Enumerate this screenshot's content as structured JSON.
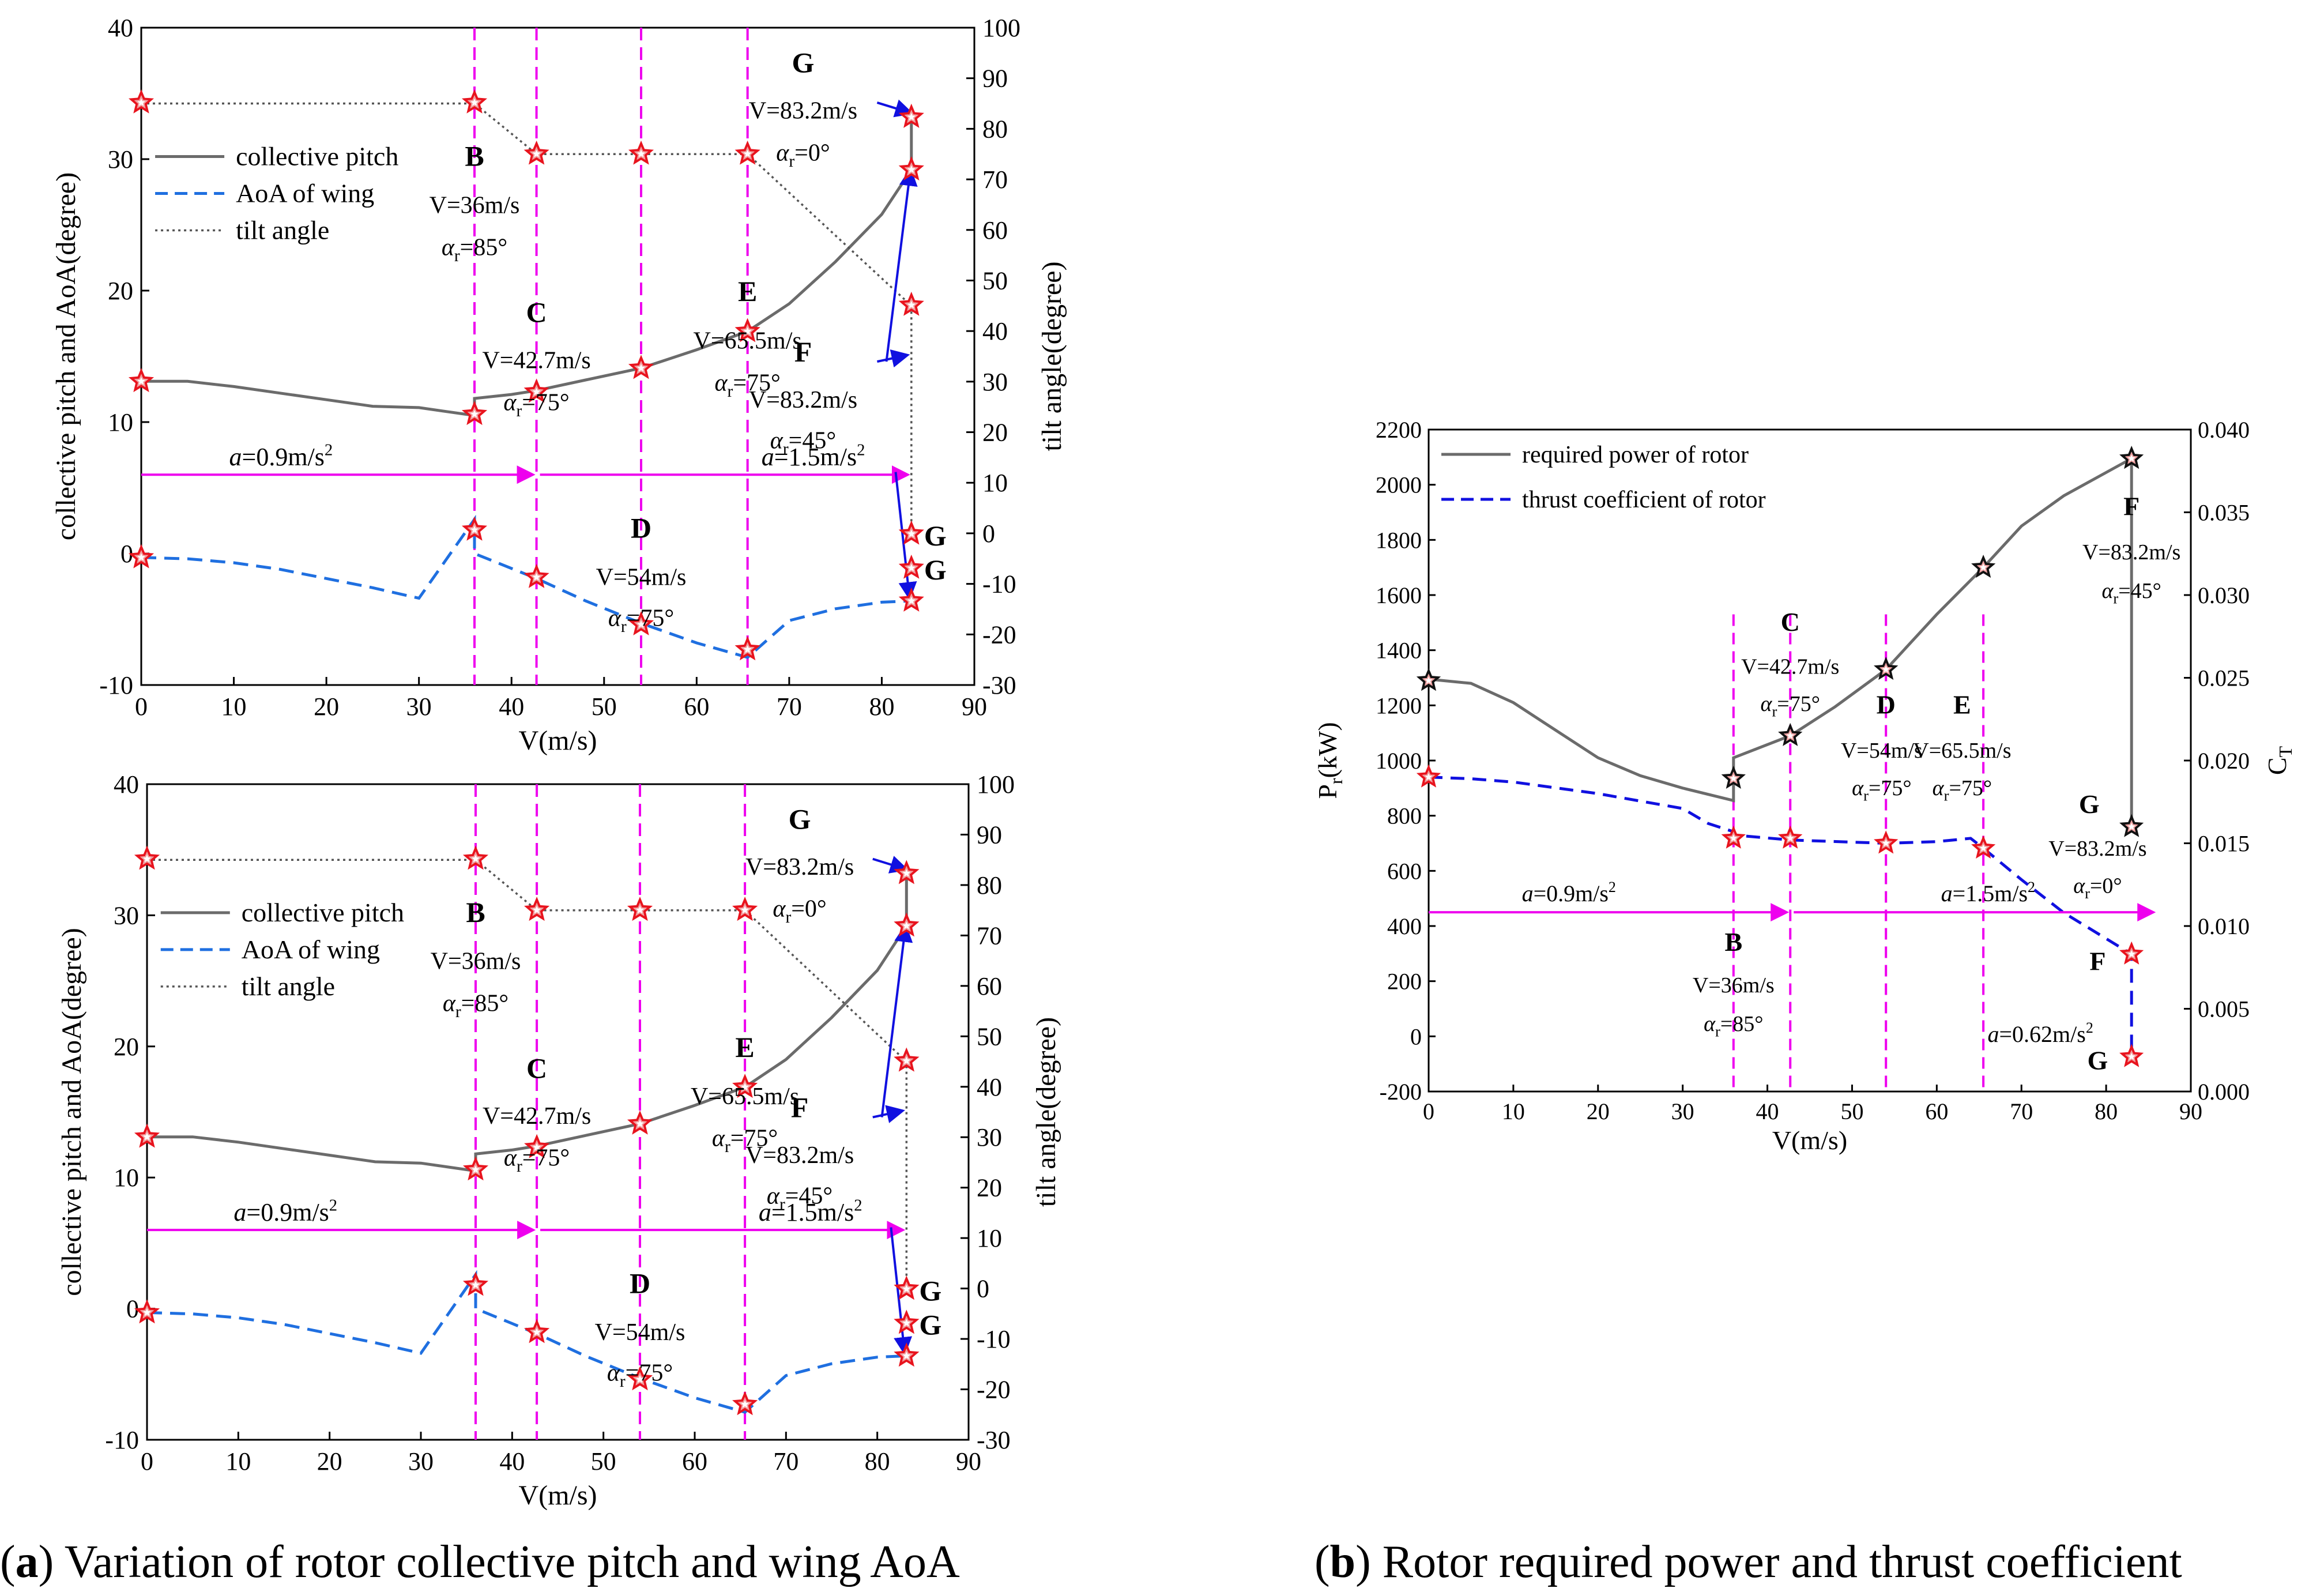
{
  "captions": [
    {
      "letter": "a",
      "text": " Variation of rotor collective pitch and wing AoA"
    },
    {
      "letter": "b",
      "text": " Rotor required power and thrust coefficient"
    }
  ],
  "colors": {
    "pitch": "#6b6b6b",
    "aoa": "#1f6fe0",
    "tilt": "#555555",
    "vline": "#ee00ee",
    "accel": "#ee00ee",
    "arrow": "#1010e0",
    "star_stroke": "#e8141e",
    "power": "#6b6b6b",
    "ct": "#1010e0"
  },
  "chart_data": [
    {
      "type": "line",
      "id": "a1",
      "xlabel": "V(m/s)",
      "ylabel": "collective pitch and AoA(degree)",
      "y2label": "tilt angle(degree)",
      "xlim": [
        0,
        90
      ],
      "ylim": [
        -10,
        40
      ],
      "y2lim": [
        -30,
        100
      ],
      "xticks": [
        0,
        10,
        20,
        30,
        40,
        50,
        60,
        70,
        80,
        90
      ],
      "yticks": [
        -10,
        0,
        10,
        20,
        30,
        40
      ],
      "y2ticks": [
        -30,
        -20,
        -10,
        0,
        10,
        20,
        30,
        40,
        50,
        60,
        70,
        80,
        90,
        100
      ],
      "legend": [
        "collective pitch",
        "AoA of wing",
        "tilt angle"
      ],
      "legend_position": "upper-left",
      "series": [
        {
          "name": "collective pitch",
          "axis": "left",
          "style": "solid",
          "x": [
            0,
            5,
            10,
            15,
            20,
            25,
            30,
            33,
            36,
            36,
            40,
            42.7,
            48,
            54,
            60,
            65.5,
            70,
            75,
            80,
            83.2,
            83.2
          ],
          "y": [
            13.1,
            13.1,
            12.7,
            12.2,
            11.7,
            11.2,
            11.1,
            10.8,
            10.5,
            11.8,
            12.1,
            12.4,
            13.2,
            14.1,
            15.5,
            16.9,
            19,
            22.2,
            25.8,
            29.2,
            33.3
          ]
        },
        {
          "name": "AoA of wing",
          "axis": "left",
          "style": "dashed",
          "x": [
            0,
            5,
            10,
            15,
            20,
            25,
            30,
            36,
            36,
            42.7,
            48,
            54,
            60,
            65.5,
            70,
            75,
            80,
            83.2
          ],
          "y": [
            -0.3,
            -0.4,
            -0.7,
            -1.2,
            -1.9,
            -2.6,
            -3.4,
            2.6,
            0,
            -1.9,
            -3.6,
            -5.3,
            -6.8,
            -7.9,
            -5.1,
            -4.2,
            -3.7,
            -3.6
          ]
        },
        {
          "name": "tilt angle",
          "axis": "right",
          "style": "dotted",
          "x": [
            0,
            36,
            42.7,
            54,
            65.5,
            83.2,
            83.2
          ],
          "y": [
            85,
            85,
            75,
            75,
            75,
            45,
            0
          ]
        }
      ],
      "markers_left": [
        {
          "x": 0,
          "y": 34.3
        },
        {
          "x": 36,
          "y": 34.3
        },
        {
          "x": 42.7,
          "y": 30.4
        },
        {
          "x": 54,
          "y": 30.4
        },
        {
          "x": 65.5,
          "y": 30.4
        },
        {
          "x": 83.2,
          "y": 33.2
        },
        {
          "x": 83.2,
          "y": 29.2
        },
        {
          "x": 83.2,
          "y": 18.9
        },
        {
          "x": 0,
          "y": 13.1
        },
        {
          "x": 36,
          "y": 10.6
        },
        {
          "x": 42.7,
          "y": 12.3
        },
        {
          "x": 54,
          "y": 14.1
        },
        {
          "x": 65.5,
          "y": 16.9
        },
        {
          "x": 83.2,
          "y": 1.5
        },
        {
          "x": 83.2,
          "y": -1.1
        },
        {
          "x": 0,
          "y": -0.3
        },
        {
          "x": 36,
          "y": 1.8
        },
        {
          "x": 42.7,
          "y": -1.8
        },
        {
          "x": 54,
          "y": -5.4
        },
        {
          "x": 65.5,
          "y": -7.3
        },
        {
          "x": 83.2,
          "y": -3.6
        }
      ],
      "vlines": [
        36,
        42.7,
        54,
        65.5
      ],
      "accel_arrows": [
        {
          "label": "a=0.9m/s",
          "sup": "2",
          "x1": 0,
          "x2": 42.7,
          "lx": 9.5,
          "ly": 6.7
        },
        {
          "label": "a=1.5m/s",
          "sup": "2",
          "x1": 42.7,
          "x2": 83.2,
          "lx": 67,
          "ly": 6.7
        }
      ],
      "accel_y": 6,
      "blue_arrows": [
        {
          "x1": 79.5,
          "y1": 34.3,
          "x2": 83.2,
          "y2": 33.5
        },
        {
          "x1": 79.5,
          "y1": 14.6,
          "x2": 82.8,
          "y2": 15.1
        },
        {
          "x1": 80.5,
          "y1": 14.6,
          "x2": 83.1,
          "y2": 29.2
        },
        {
          "x1": 81.5,
          "y1": 6.2,
          "x2": 83,
          "y2": -3.4
        }
      ],
      "point_labels": [
        {
          "letter": "B",
          "x": 36,
          "y": 29.5
        },
        {
          "letter": "C",
          "x": 42.7,
          "y": 17.6
        },
        {
          "letter": "D",
          "x": 54,
          "y": 1.2
        },
        {
          "letter": "E",
          "x": 65.5,
          "y": 19.2
        },
        {
          "letter": "F",
          "x": 71.5,
          "y": 14.6
        },
        {
          "letter": "G",
          "x": 71.5,
          "y": 36.6
        }
      ],
      "point_texts": [
        {
          "v": "V=36m/s",
          "a": "85°",
          "x": 36,
          "y1": 25.9,
          "y2": 22.7
        },
        {
          "v": "V=42.7m/s",
          "a": "75°",
          "x": 42.7,
          "y1": 14.1,
          "y2": 10.9
        },
        {
          "v": "V=54m/s",
          "a": "75°",
          "x": 54,
          "y1": -2.4,
          "y2": -5.5
        },
        {
          "v": "V=65.5m/s",
          "a": "75°",
          "x": 65.5,
          "y1": 15.6,
          "y2": 12.4
        },
        {
          "v": "V=83.2m/s",
          "a": "45°",
          "x": 71.5,
          "y1": 11.1,
          "y2": 8
        },
        {
          "v": "V=83.2m/s",
          "a": "0°",
          "x": 71.5,
          "y1": 33.1,
          "y2": 29.9
        }
      ],
      "side_labels": [
        {
          "letter": "G",
          "x": 83.2,
          "y": 1.5
        },
        {
          "letter": "G",
          "x": 83.2,
          "y": -1.1
        }
      ]
    },
    {
      "type": "line",
      "id": "a2",
      "xlabel": "V(m/s)",
      "ylabel": "collective pitch and AoA(degree)",
      "y2label": "tilt angle(degree)",
      "xlim": [
        0,
        90
      ],
      "ylim": [
        -10,
        40
      ],
      "y2lim": [
        -30,
        100
      ],
      "xticks": [
        0,
        10,
        20,
        30,
        40,
        50,
        60,
        70,
        80,
        90
      ],
      "yticks": [
        -10,
        0,
        10,
        20,
        30,
        40
      ],
      "y2ticks": [
        -30,
        -20,
        -10,
        0,
        10,
        20,
        30,
        40,
        50,
        60,
        70,
        80,
        90,
        100
      ],
      "legend": [
        "collective pitch",
        "AoA of wing",
        "tilt angle"
      ],
      "legend_position": "upper-left",
      "series": [
        {
          "name": "collective pitch",
          "axis": "left",
          "style": "solid",
          "x": [
            0,
            5,
            10,
            15,
            20,
            25,
            30,
            33,
            36,
            36,
            40,
            42.7,
            48,
            54,
            60,
            65.5,
            70,
            75,
            80,
            83.2,
            83.2
          ],
          "y": [
            13.1,
            13.1,
            12.7,
            12.2,
            11.7,
            11.2,
            11.1,
            10.8,
            10.5,
            11.8,
            12.1,
            12.4,
            13.2,
            14.1,
            15.5,
            16.9,
            19,
            22.2,
            25.8,
            29.2,
            33.3
          ]
        },
        {
          "name": "AoA of wing",
          "axis": "left",
          "style": "dashed",
          "x": [
            0,
            5,
            10,
            15,
            20,
            25,
            30,
            36,
            36,
            42.7,
            48,
            54,
            60,
            65.5,
            70,
            75,
            80,
            83.2
          ],
          "y": [
            -0.3,
            -0.4,
            -0.7,
            -1.2,
            -1.9,
            -2.6,
            -3.4,
            2.6,
            0,
            -1.9,
            -3.6,
            -5.3,
            -6.8,
            -7.9,
            -5.1,
            -4.2,
            -3.7,
            -3.6
          ]
        },
        {
          "name": "tilt angle",
          "axis": "right",
          "style": "dotted",
          "x": [
            0,
            36,
            42.7,
            54,
            65.5,
            83.2,
            83.2
          ],
          "y": [
            85,
            85,
            75,
            75,
            75,
            45,
            0
          ]
        }
      ],
      "markers_left": [
        {
          "x": 0,
          "y": 34.3
        },
        {
          "x": 36,
          "y": 34.3
        },
        {
          "x": 42.7,
          "y": 30.4
        },
        {
          "x": 54,
          "y": 30.4
        },
        {
          "x": 65.5,
          "y": 30.4
        },
        {
          "x": 83.2,
          "y": 33.2
        },
        {
          "x": 83.2,
          "y": 29.2
        },
        {
          "x": 83.2,
          "y": 18.9
        },
        {
          "x": 0,
          "y": 13.1
        },
        {
          "x": 36,
          "y": 10.6
        },
        {
          "x": 42.7,
          "y": 12.3
        },
        {
          "x": 54,
          "y": 14.1
        },
        {
          "x": 65.5,
          "y": 16.9
        },
        {
          "x": 83.2,
          "y": 1.5
        },
        {
          "x": 83.2,
          "y": -1.1
        },
        {
          "x": 0,
          "y": -0.3
        },
        {
          "x": 36,
          "y": 1.8
        },
        {
          "x": 42.7,
          "y": -1.8
        },
        {
          "x": 54,
          "y": -5.4
        },
        {
          "x": 65.5,
          "y": -7.3
        },
        {
          "x": 83.2,
          "y": -3.6
        }
      ],
      "vlines": [
        36,
        42.7,
        54,
        65.5
      ],
      "accel_arrows": [
        {
          "label": "a=0.9m/s",
          "sup": "2",
          "x1": 0,
          "x2": 42.7,
          "lx": 9.5,
          "ly": 6.7
        },
        {
          "label": "a=1.5m/s",
          "sup": "2",
          "x1": 42.7,
          "x2": 83.2,
          "lx": 67,
          "ly": 6.7
        }
      ],
      "accel_y": 6,
      "blue_arrows": [
        {
          "x1": 79.5,
          "y1": 34.3,
          "x2": 83.2,
          "y2": 33.5
        },
        {
          "x1": 79.5,
          "y1": 14.6,
          "x2": 82.8,
          "y2": 15.1
        },
        {
          "x1": 80.5,
          "y1": 14.6,
          "x2": 83.1,
          "y2": 29.2
        },
        {
          "x1": 81.5,
          "y1": 6.2,
          "x2": 83,
          "y2": -3.4
        }
      ],
      "point_labels": [
        {
          "letter": "B",
          "x": 36,
          "y": 29.5
        },
        {
          "letter": "C",
          "x": 42.7,
          "y": 17.6
        },
        {
          "letter": "D",
          "x": 54,
          "y": 1.2
        },
        {
          "letter": "E",
          "x": 65.5,
          "y": 19.2
        },
        {
          "letter": "F",
          "x": 71.5,
          "y": 14.6
        },
        {
          "letter": "G",
          "x": 71.5,
          "y": 36.6
        }
      ],
      "point_texts": [
        {
          "v": "V=36m/s",
          "a": "85°",
          "x": 36,
          "y1": 25.9,
          "y2": 22.7
        },
        {
          "v": "V=42.7m/s",
          "a": "75°",
          "x": 42.7,
          "y1": 14.1,
          "y2": 10.9
        },
        {
          "v": "V=54m/s",
          "a": "75°",
          "x": 54,
          "y1": -2.4,
          "y2": -5.5
        },
        {
          "v": "V=65.5m/s",
          "a": "75°",
          "x": 65.5,
          "y1": 15.6,
          "y2": 12.4
        },
        {
          "v": "V=83.2m/s",
          "a": "45°",
          "x": 71.5,
          "y1": 11.1,
          "y2": 8
        },
        {
          "v": "V=83.2m/s",
          "a": "0°",
          "x": 71.5,
          "y1": 33.1,
          "y2": 29.9
        }
      ],
      "side_labels": [
        {
          "letter": "G",
          "x": 83.2,
          "y": 1.5
        },
        {
          "letter": "G",
          "x": 83.2,
          "y": -1.1
        }
      ]
    },
    {
      "type": "line",
      "id": "b",
      "xlabel": "V(m/s)",
      "ylabel": "P",
      "ylabel_sub": "r",
      "ylabel_tail": "(kW)",
      "y2label": "C",
      "y2label_sub": "T",
      "xlim": [
        0,
        90
      ],
      "ylim": [
        -200,
        2200
      ],
      "y2lim": [
        0,
        0.04
      ],
      "xticks": [
        0,
        10,
        20,
        30,
        40,
        50,
        60,
        70,
        80,
        90
      ],
      "yticks": [
        -200,
        0,
        200,
        400,
        600,
        800,
        1000,
        1200,
        1400,
        1600,
        1800,
        2000,
        2200
      ],
      "y2ticks": [
        "0.000",
        "0.005",
        "0.010",
        "0.015",
        "0.020",
        "0.025",
        "0.030",
        "0.035",
        "0.040"
      ],
      "legend": [
        "required power of rotor",
        "thrust coefficient of rotor"
      ],
      "legend_position": "upper-left",
      "series": [
        {
          "name": "required power of rotor",
          "axis": "left",
          "style": "solid",
          "x": [
            0,
            5,
            10,
            15,
            20,
            25,
            30,
            36,
            36,
            42.7,
            48,
            54,
            60,
            65.5,
            70,
            75,
            83,
            83
          ],
          "y": [
            1295,
            1280,
            1210,
            1110,
            1010,
            945,
            900,
            855,
            1010,
            1090,
            1195,
            1330,
            1530,
            1700,
            1850,
            1960,
            2095,
            760
          ]
        },
        {
          "name": "thrust coefficient of rotor",
          "axis": "right",
          "style": "dashed",
          "x": [
            0,
            5,
            10,
            20,
            30,
            33,
            36,
            36,
            42.7,
            54,
            60,
            64,
            65.5,
            70,
            75,
            83,
            83
          ],
          "y": [
            0.019,
            0.0189,
            0.0187,
            0.018,
            0.0171,
            0.0162,
            0.0157,
            0.0155,
            0.0152,
            0.015,
            0.0151,
            0.0153,
            0.0147,
            0.0128,
            0.0108,
            0.0083,
            0.0021
          ]
        }
      ],
      "markers_power": [
        {
          "x": 0,
          "y": 1290
        },
        {
          "x": 36,
          "y": 935
        },
        {
          "x": 42.7,
          "y": 1090
        },
        {
          "x": 54,
          "y": 1330
        },
        {
          "x": 65.5,
          "y": 1700
        },
        {
          "x": 83,
          "y": 2095
        },
        {
          "x": 83,
          "y": 760
        }
      ],
      "markers_ct": [
        {
          "x": 0,
          "y": 0.019
        },
        {
          "x": 36,
          "y": 0.0153
        },
        {
          "x": 42.7,
          "y": 0.0153
        },
        {
          "x": 54,
          "y": 0.015
        },
        {
          "x": 65.5,
          "y": 0.0147
        },
        {
          "x": 83,
          "y": 0.0083
        },
        {
          "x": 83,
          "y": 0.0021
        }
      ],
      "vlines": [
        36,
        42.7,
        54,
        65.5
      ],
      "accel_arrows": [
        {
          "label": "a=0.9m/s",
          "sup": "2",
          "x1": 0,
          "x2": 42.7,
          "lx": 11,
          "ly": 490
        },
        {
          "label": "a=1.5m/s",
          "sup": "2",
          "x1": 42.7,
          "x2": 86,
          "lx": 60.5,
          "ly": 490
        }
      ],
      "accel_y": 450,
      "extra_labels": [
        {
          "label": "a=0.62m/s",
          "sup": "2",
          "x": 66,
          "y": -20
        }
      ],
      "point_labels": [
        {
          "letter": "B",
          "x": 36,
          "y": 310
        },
        {
          "letter": "C",
          "x": 42.7,
          "y": 1470
        },
        {
          "letter": "D",
          "x": 54,
          "y": 1170
        },
        {
          "letter": "E",
          "x": 63,
          "y": 1170
        },
        {
          "letter": "F",
          "x": 83,
          "y": 1890
        },
        {
          "letter": "G",
          "x": 78,
          "y": 810
        },
        {
          "letter": "F",
          "x": 79,
          "y": 240
        },
        {
          "letter": "G",
          "x": 79,
          "y": -120
        }
      ],
      "point_texts": [
        {
          "v": "V=36m/s",
          "a": "85°",
          "x": 36,
          "y1": 160,
          "y2": 20
        },
        {
          "v": "V=42.7m/s",
          "a": "75°",
          "x": 42.7,
          "y1": 1315,
          "y2": 1180
        },
        {
          "v": "V=54m/s",
          "a": "75°",
          "x": 53.5,
          "y1": 1010,
          "y2": 875
        },
        {
          "v": "V=65.5m/s",
          "a": "75°",
          "x": 63,
          "y1": 1010,
          "y2": 875
        },
        {
          "v": "V=83.2m/s",
          "a": "45°",
          "x": 83,
          "y1": 1730,
          "y2": 1590
        },
        {
          "v": "V=83.2m/s",
          "a": "0°",
          "x": 79,
          "y1": 655,
          "y2": 520
        }
      ]
    }
  ]
}
